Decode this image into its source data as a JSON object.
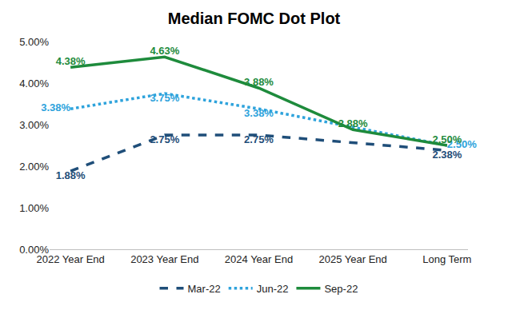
{
  "chart_data": {
    "type": "line",
    "title": "Median FOMC Dot Plot",
    "categories": [
      "2022 Year End",
      "2023 Year End",
      "2024 Year End",
      "2025 Year End",
      "Long Term"
    ],
    "series": [
      {
        "name": "Mar-22",
        "color": "#1f4e79",
        "line_style": "dash",
        "values": [
          1.88,
          2.75,
          2.75,
          2.57,
          2.38
        ],
        "value_labels": [
          "1.88%",
          "2.75%",
          "2.75%",
          null,
          "2.38%"
        ]
      },
      {
        "name": "Jun-22",
        "color": "#2ea3dc",
        "line_style": "dot",
        "values": [
          3.38,
          3.75,
          3.38,
          2.94,
          2.5
        ],
        "value_labels": [
          "3.38%",
          "3.75%",
          "3.38%",
          null,
          "2.50%"
        ]
      },
      {
        "name": "Sep-22",
        "color": "#1e8b3c",
        "line_style": "solid",
        "values": [
          4.38,
          4.63,
          3.88,
          2.88,
          2.5
        ],
        "value_labels": [
          "4.38%",
          "4.63%",
          "3.88%",
          "2.88%",
          "2.50%"
        ]
      }
    ],
    "ylim": [
      0,
      5
    ],
    "yticks": [
      {
        "value": 0,
        "label": "0.00%"
      },
      {
        "value": 1,
        "label": "1.00%"
      },
      {
        "value": 2,
        "label": "2.00%"
      },
      {
        "value": 3,
        "label": "3.00%"
      },
      {
        "value": 4,
        "label": "4.00%"
      },
      {
        "value": 5,
        "label": "5.00%"
      }
    ],
    "grid": false,
    "legend": "bottom",
    "data_labels": true
  }
}
